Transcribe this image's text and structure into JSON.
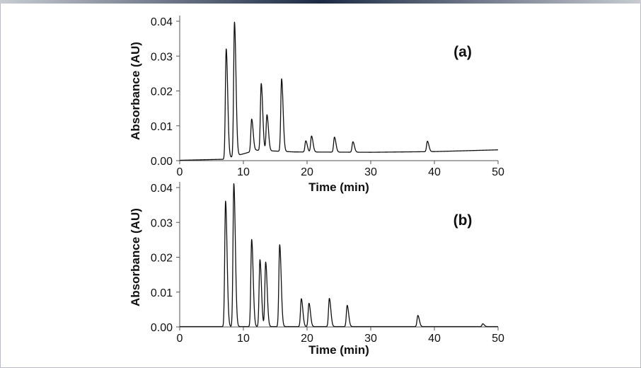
{
  "colors": {
    "trace": "#111111",
    "axis": "#555555",
    "frame_border": "#b9bcc2",
    "banner_dark": "#1c2a45"
  },
  "chart_data": [
    {
      "type": "line",
      "panel_label": "(a)",
      "xlabel": "Time (min)",
      "ylabel": "Absorbance (AU)",
      "xlim": [
        0,
        50
      ],
      "ylim": [
        0,
        0.04
      ],
      "x_ticks": [
        0,
        10,
        20,
        30,
        40,
        50
      ],
      "y_ticks": [
        0.0,
        0.01,
        0.02,
        0.03,
        0.04
      ],
      "x_tick_labels": [
        "0",
        "10",
        "20",
        "30",
        "40",
        "50"
      ],
      "y_tick_labels": [
        "0.00",
        "0.01",
        "0.02",
        "0.03",
        "0.04"
      ],
      "grid": false,
      "baseline": [
        [
          0,
          0.0001
        ],
        [
          7.0,
          0.0004
        ],
        [
          12,
          0.003
        ],
        [
          18,
          0.0025
        ],
        [
          30,
          0.0024
        ],
        [
          40,
          0.0026
        ],
        [
          50,
          0.0031
        ]
      ],
      "peaks": [
        {
          "t": 7.3,
          "height": 0.0315
        },
        {
          "t": 8.6,
          "height": 0.0385
        },
        {
          "t": 11.3,
          "height": 0.0093
        },
        {
          "t": 12.8,
          "height": 0.0192
        },
        {
          "t": 13.7,
          "height": 0.0103
        },
        {
          "t": 16.0,
          "height": 0.0208
        },
        {
          "t": 19.8,
          "height": 0.0032
        },
        {
          "t": 20.7,
          "height": 0.0046
        },
        {
          "t": 24.3,
          "height": 0.0043
        },
        {
          "t": 27.2,
          "height": 0.003
        },
        {
          "t": 38.9,
          "height": 0.003
        }
      ]
    },
    {
      "type": "line",
      "panel_label": "(b)",
      "xlabel": "Time (min)",
      "ylabel": "Absorbance (AU)",
      "xlim": [
        0,
        50
      ],
      "ylim": [
        0,
        0.04
      ],
      "x_ticks": [
        0,
        10,
        20,
        30,
        40,
        50
      ],
      "y_ticks": [
        0.0,
        0.01,
        0.02,
        0.03,
        0.04
      ],
      "x_tick_labels": [
        "0",
        "10",
        "20",
        "30",
        "40",
        "50"
      ],
      "y_tick_labels": [
        "0.00",
        "0.01",
        "0.02",
        "0.03",
        "0.04"
      ],
      "grid": false,
      "baseline": [
        [
          0,
          0.0001
        ],
        [
          50,
          0.0001
        ]
      ],
      "peaks": [
        {
          "t": 7.2,
          "height": 0.036
        },
        {
          "t": 8.5,
          "height": 0.041
        },
        {
          "t": 11.3,
          "height": 0.025
        },
        {
          "t": 12.6,
          "height": 0.0192
        },
        {
          "t": 13.5,
          "height": 0.0185
        },
        {
          "t": 15.7,
          "height": 0.0235
        },
        {
          "t": 19.1,
          "height": 0.008
        },
        {
          "t": 20.3,
          "height": 0.0067
        },
        {
          "t": 23.5,
          "height": 0.0081
        },
        {
          "t": 26.3,
          "height": 0.0061
        },
        {
          "t": 37.4,
          "height": 0.0032
        },
        {
          "t": 47.6,
          "height": 0.0008
        }
      ]
    }
  ]
}
